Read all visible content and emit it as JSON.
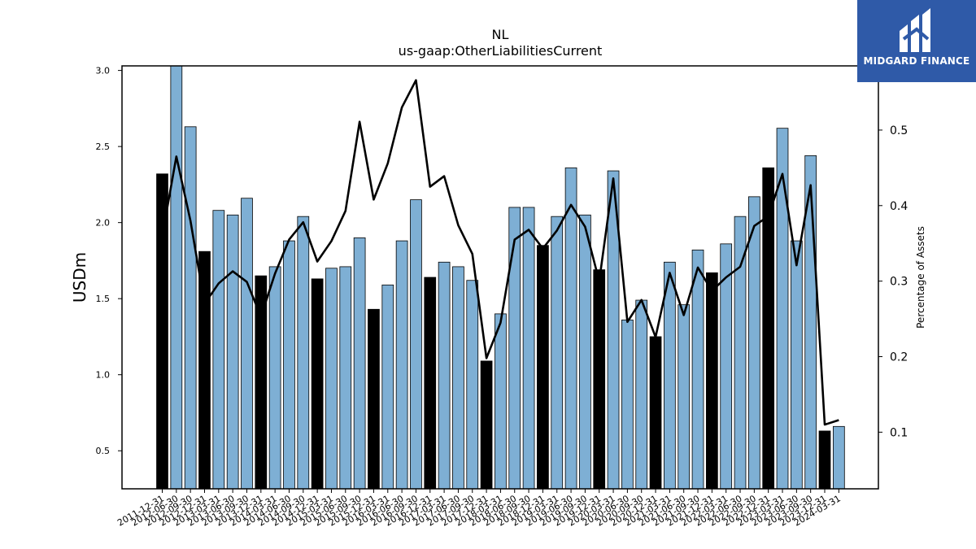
{
  "chart_data": {
    "type": "bar",
    "title": "NL",
    "subtitle": "us-gaap:OtherLiabilitiesCurrent",
    "ylabel": "USDm",
    "y2label": "Percentage of Assets",
    "ylim": [
      0.25,
      3.03
    ],
    "y2lim": [
      0.025,
      0.585
    ],
    "yticks": [
      "0.5",
      "1.0",
      "1.5",
      "2.0",
      "2.5",
      "3.0"
    ],
    "y2ticks": [
      "0.1",
      "0.2",
      "0.3",
      "0.4",
      "0.5"
    ],
    "categories": [
      "2011-12-31",
      "2012-06-30",
      "2012-09-30",
      "2012-12-31",
      "2013-03-31",
      "2013-06-30",
      "2013-09-30",
      "2013-12-31",
      "2014-03-31",
      "2014-06-30",
      "2014-09-30",
      "2014-12-31",
      "2015-03-31",
      "2015-06-30",
      "2015-09-30",
      "2015-12-31",
      "2016-03-31",
      "2016-06-30",
      "2016-09-30",
      "2016-12-31",
      "2017-03-31",
      "2017-06-30",
      "2017-09-30",
      "2017-12-31",
      "2018-03-31",
      "2018-06-30",
      "2018-09-30",
      "2018-12-31",
      "2019-03-31",
      "2019-06-30",
      "2019-09-30",
      "2019-12-31",
      "2020-03-31",
      "2020-06-30",
      "2020-09-30",
      "2020-12-31",
      "2021-03-31",
      "2021-06-30",
      "2021-09-30",
      "2021-12-31",
      "2022-03-31",
      "2022-06-30",
      "2022-09-30",
      "2022-12-31",
      "2023-03-31",
      "2023-06-30",
      "2023-09-30",
      "2023-12-31",
      "2024-03-31"
    ],
    "series": [
      {
        "values": [
          2.32,
          3.05,
          2.63,
          1.81,
          2.08,
          2.05,
          2.16,
          1.65,
          1.71,
          1.88,
          2.04,
          1.63,
          1.7,
          1.71,
          1.9,
          1.43,
          1.59,
          1.88,
          2.15,
          1.64,
          1.74,
          1.71,
          1.62,
          1.09,
          1.4,
          2.1,
          2.1,
          1.85,
          2.04,
          2.36,
          2.05,
          1.69,
          2.34,
          1.36,
          1.49,
          1.25,
          1.74,
          1.46,
          1.82,
          1.67,
          1.86,
          2.04,
          2.17,
          2.36,
          2.62,
          1.88,
          2.44,
          0.63,
          0.66
        ],
        "highlight_year_end": true,
        "colors": {
          "regular": "#7eafd4",
          "year_end": "#000000"
        }
      },
      {
        "values": [
          0.36,
          0.465,
          0.38,
          0.27,
          0.297,
          0.313,
          0.299,
          0.253,
          0.31,
          0.355,
          0.378,
          0.326,
          0.353,
          0.393,
          0.511,
          0.408,
          0.456,
          0.53,
          0.566,
          0.425,
          0.439,
          0.374,
          0.336,
          0.198,
          0.245,
          0.355,
          0.368,
          0.343,
          0.367,
          0.401,
          0.372,
          0.3,
          0.436,
          0.246,
          0.275,
          0.226,
          0.311,
          0.255,
          0.318,
          0.287,
          0.305,
          0.319,
          0.373,
          0.386,
          0.442,
          0.321,
          0.427,
          0.11,
          0.116
        ],
        "axis": "right",
        "color": "#000000"
      }
    ],
    "grid": false
  },
  "logo": {
    "name": "MIDGARD FINANCE"
  }
}
